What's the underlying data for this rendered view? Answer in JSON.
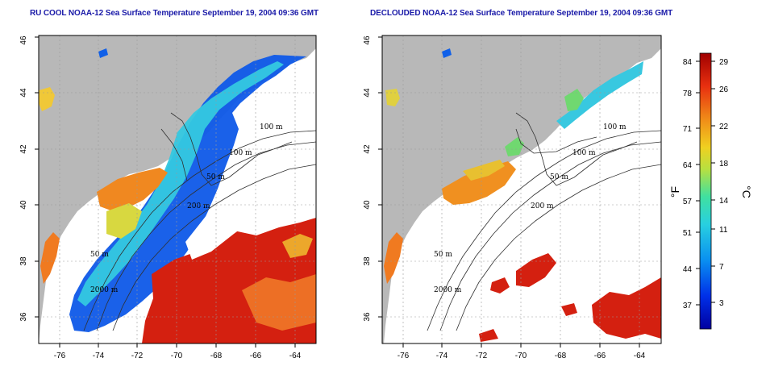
{
  "panels": [
    {
      "id": "raw",
      "title": "RU COOL NOAA-12 Sea Surface Temperature September 19, 2004 09:36 GMT",
      "contour_labels": [
        "100 m",
        "100 m",
        "50 m",
        "200 m",
        "50 m",
        "2000 m"
      ]
    },
    {
      "id": "declouded",
      "title": "DECLOUDED NOAA-12 Sea Surface Temperature September 19, 2004 09:36 GMT",
      "contour_labels": [
        "100 m",
        "100 m",
        "50 m",
        "200 m",
        "50 m",
        "2000 m"
      ]
    }
  ],
  "map_axes": {
    "lon_ticks": [
      "-76",
      "-74",
      "-72",
      "-70",
      "-68",
      "-66",
      "-64"
    ],
    "lat_ticks": [
      "36",
      "38",
      "40",
      "42",
      "44",
      "46"
    ]
  },
  "colorbar": {
    "fahrenheit_label": "°F",
    "celsius_label": "°C",
    "fahrenheit_ticks": [
      "84",
      "78",
      "71",
      "64",
      "57",
      "51",
      "44",
      "37"
    ],
    "celsius_ticks": [
      "29",
      "26",
      "22",
      "18",
      "14",
      "11",
      "7",
      "3"
    ]
  },
  "colors": {
    "land": "#b8b8b8",
    "cloud": "#ffffff",
    "title": "#1a1aa8",
    "cold": "#0000a8",
    "cool": "#0e6cf0",
    "mild": "#30c8d8",
    "temperate": "#40d890",
    "warm": "#f0c030",
    "hot": "#f07820",
    "hottest": "#c80808"
  }
}
